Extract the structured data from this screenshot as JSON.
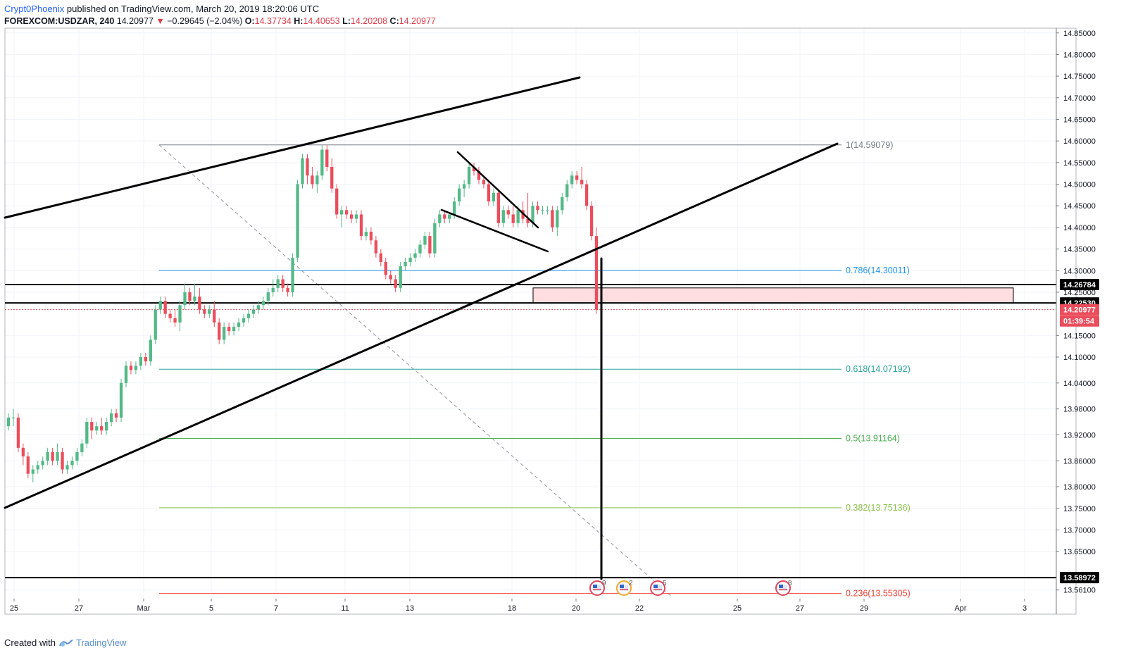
{
  "header": {
    "author": "Crypt0Phoenix",
    "published": "published on TradingView.com, March 20, 2019 18:20:06 UTC",
    "symbol": "FOREXCOM:USDZAR, 240",
    "price": "14.20977",
    "change": "−0.29645 (−2.04%)",
    "o_label": "O:",
    "o_value": "14.37734",
    "h_label": "H:",
    "h_value": "14.40653",
    "l_label": "L:",
    "l_value": "14.20208",
    "c_label": "C:",
    "c_value": "14.20977"
  },
  "footer": {
    "created_with": "Created with",
    "brand": "TradingView"
  },
  "colors": {
    "up": "#53b987",
    "down": "#eb4d5c",
    "trendline": "#000000",
    "fib_0786": "#2196f3",
    "fib_0618": "#26a69a",
    "fib_05": "#4caf50",
    "fib_0382": "#8bc34a",
    "fib_0236": "#f44336",
    "fib_1": "#787b86",
    "zone_fill": "#ffdde0",
    "zone_border": "#000000"
  },
  "chart_data": {
    "type": "candlestick",
    "symbol": "FOREXCOM:USDZAR",
    "interval": "240",
    "y_range": [
      13.541,
      14.861
    ],
    "x_ticks": [
      "25",
      "27",
      "Mar",
      "5",
      "7",
      "11",
      "13",
      "18",
      "20",
      "22",
      "25",
      "27",
      "29",
      "Apr",
      "3"
    ],
    "y_ticks": [
      "14.85000",
      "14.80000",
      "14.75000",
      "14.70000",
      "14.65000",
      "14.60000",
      "14.55000",
      "14.50000",
      "14.45000",
      "14.40000",
      "14.35000",
      "14.30000",
      "14.25000",
      "14.15000",
      "14.10000",
      "14.04000",
      "13.98000",
      "13.92000",
      "13.86000",
      "13.80000",
      "13.75000",
      "13.70000",
      "13.65000",
      "13.56100"
    ],
    "price_labels": [
      {
        "text": "14.26784",
        "value": 14.26784,
        "style": "black"
      },
      {
        "text": "14.22530",
        "value": 14.2253,
        "style": "black"
      },
      {
        "text": "14.20977",
        "value": 14.20977,
        "style": "red"
      },
      {
        "text": "01:39:54",
        "value": 14.1835,
        "style": "red"
      },
      {
        "text": "13.58972",
        "value": 13.58972,
        "style": "black"
      }
    ],
    "fib_levels": [
      {
        "ratio": "1",
        "label": "1(14.59079)",
        "value": 14.59079,
        "color": "#787b86"
      },
      {
        "ratio": "0.786",
        "label": "0.786(14.30011)",
        "value": 14.30011,
        "color": "#2196f3"
      },
      {
        "ratio": "0.618",
        "label": "0.618(14.07192)",
        "value": 14.07192,
        "color": "#26a69a"
      },
      {
        "ratio": "0.5",
        "label": "0.5(13.91164)",
        "value": 13.91164,
        "color": "#4caf50"
      },
      {
        "ratio": "0.382",
        "label": "0.382(13.75136)",
        "value": 13.75136,
        "color": "#8bc34a"
      },
      {
        "ratio": "0.236",
        "label": "0.236(13.55305)",
        "value": 13.55305,
        "color": "#f44336"
      }
    ],
    "horizontal_levels": [
      14.26784,
      14.2253,
      13.58972
    ],
    "current_price": 14.20977,
    "resistance_zone": [
      14.2253,
      14.26
    ],
    "event_markers": [
      {
        "date": "20",
        "count": "9"
      },
      {
        "date": "21",
        "count": "2"
      },
      {
        "date": "22",
        "count": "5"
      },
      {
        "date": "26",
        "count": "8"
      }
    ],
    "candles_ohlc": [
      [
        13.94,
        13.97,
        13.93,
        13.96
      ],
      [
        13.96,
        13.98,
        13.94,
        13.96
      ],
      [
        13.96,
        13.97,
        13.88,
        13.89
      ],
      [
        13.89,
        13.9,
        13.85,
        13.87
      ],
      [
        13.87,
        13.88,
        13.82,
        13.83
      ],
      [
        13.83,
        13.85,
        13.81,
        13.84
      ],
      [
        13.84,
        13.86,
        13.83,
        13.85
      ],
      [
        13.85,
        13.87,
        13.84,
        13.86
      ],
      [
        13.86,
        13.89,
        13.85,
        13.88
      ],
      [
        13.88,
        13.89,
        13.85,
        13.86
      ],
      [
        13.86,
        13.9,
        13.85,
        13.88
      ],
      [
        13.88,
        13.89,
        13.83,
        13.84
      ],
      [
        13.84,
        13.86,
        13.83,
        13.85
      ],
      [
        13.85,
        13.87,
        13.84,
        13.86
      ],
      [
        13.86,
        13.89,
        13.85,
        13.88
      ],
      [
        13.88,
        13.91,
        13.87,
        13.9
      ],
      [
        13.9,
        13.96,
        13.89,
        13.95
      ],
      [
        13.95,
        13.96,
        13.91,
        13.93
      ],
      [
        13.93,
        13.95,
        13.92,
        13.94
      ],
      [
        13.94,
        13.96,
        13.92,
        13.93
      ],
      [
        13.93,
        13.96,
        13.92,
        13.95
      ],
      [
        13.95,
        13.98,
        13.94,
        13.97
      ],
      [
        13.97,
        13.98,
        13.95,
        13.96
      ],
      [
        13.96,
        14.05,
        13.95,
        14.04
      ],
      [
        14.04,
        14.09,
        14.03,
        14.08
      ],
      [
        14.08,
        14.09,
        14.06,
        14.07
      ],
      [
        14.07,
        14.09,
        14.06,
        14.08
      ],
      [
        14.08,
        14.11,
        14.07,
        14.1
      ],
      [
        14.1,
        14.11,
        14.08,
        14.09
      ],
      [
        14.09,
        14.15,
        14.08,
        14.14
      ],
      [
        14.14,
        14.22,
        14.13,
        14.21
      ],
      [
        14.21,
        14.24,
        14.2,
        14.23
      ],
      [
        14.23,
        14.24,
        14.19,
        14.2
      ],
      [
        14.2,
        14.21,
        14.18,
        14.19
      ],
      [
        14.19,
        14.21,
        14.17,
        14.18
      ],
      [
        14.18,
        14.23,
        14.16,
        14.22
      ],
      [
        14.22,
        14.27,
        14.21,
        14.25
      ],
      [
        14.25,
        14.26,
        14.22,
        14.23
      ],
      [
        14.23,
        14.27,
        14.22,
        14.24
      ],
      [
        14.24,
        14.26,
        14.2,
        14.21
      ],
      [
        14.21,
        14.22,
        14.19,
        14.2
      ],
      [
        14.2,
        14.22,
        14.19,
        14.21
      ],
      [
        14.21,
        14.23,
        14.17,
        14.18
      ],
      [
        14.18,
        14.19,
        14.13,
        14.14
      ],
      [
        14.14,
        14.18,
        14.13,
        14.17
      ],
      [
        14.17,
        14.18,
        14.15,
        14.16
      ],
      [
        14.16,
        14.18,
        14.15,
        14.17
      ],
      [
        14.17,
        14.19,
        14.16,
        14.18
      ],
      [
        14.18,
        14.2,
        14.17,
        14.19
      ],
      [
        14.19,
        14.21,
        14.18,
        14.2
      ],
      [
        14.2,
        14.22,
        14.19,
        14.21
      ],
      [
        14.21,
        14.23,
        14.2,
        14.22
      ],
      [
        14.22,
        14.24,
        14.21,
        14.23
      ],
      [
        14.23,
        14.26,
        14.22,
        14.25
      ],
      [
        14.25,
        14.28,
        14.24,
        14.26
      ],
      [
        14.26,
        14.29,
        14.25,
        14.28
      ],
      [
        14.28,
        14.29,
        14.25,
        14.26
      ],
      [
        14.26,
        14.27,
        14.24,
        14.25
      ],
      [
        14.25,
        14.34,
        14.24,
        14.33
      ],
      [
        14.33,
        14.51,
        14.32,
        14.5
      ],
      [
        14.5,
        14.57,
        14.49,
        14.56
      ],
      [
        14.56,
        14.57,
        14.5,
        14.52
      ],
      [
        14.52,
        14.54,
        14.49,
        14.5
      ],
      [
        14.5,
        14.53,
        14.48,
        14.52
      ],
      [
        14.52,
        14.59,
        14.51,
        14.58
      ],
      [
        14.58,
        14.59,
        14.53,
        14.54
      ],
      [
        14.54,
        14.56,
        14.48,
        14.49
      ],
      [
        14.49,
        14.5,
        14.42,
        14.43
      ],
      [
        14.43,
        14.45,
        14.4,
        14.44
      ],
      [
        14.44,
        14.45,
        14.42,
        14.43
      ],
      [
        14.43,
        14.44,
        14.41,
        14.42
      ],
      [
        14.42,
        14.44,
        14.41,
        14.43
      ],
      [
        14.43,
        14.44,
        14.37,
        14.38
      ],
      [
        14.38,
        14.4,
        14.37,
        14.39
      ],
      [
        14.39,
        14.4,
        14.36,
        14.37
      ],
      [
        14.37,
        14.38,
        14.33,
        14.34
      ],
      [
        14.34,
        14.35,
        14.31,
        14.32
      ],
      [
        14.32,
        14.33,
        14.28,
        14.29
      ],
      [
        14.29,
        14.3,
        14.27,
        14.28
      ],
      [
        14.28,
        14.29,
        14.25,
        14.26
      ],
      [
        14.26,
        14.32,
        14.25,
        14.31
      ],
      [
        14.31,
        14.33,
        14.3,
        14.32
      ],
      [
        14.32,
        14.34,
        14.31,
        14.33
      ],
      [
        14.33,
        14.35,
        14.32,
        14.34
      ],
      [
        14.34,
        14.37,
        14.33,
        14.36
      ],
      [
        14.36,
        14.39,
        14.35,
        14.38
      ],
      [
        14.38,
        14.39,
        14.33,
        14.34
      ],
      [
        14.34,
        14.42,
        14.33,
        14.41
      ],
      [
        14.41,
        14.44,
        14.4,
        14.43
      ],
      [
        14.43,
        14.44,
        14.41,
        14.42
      ],
      [
        14.42,
        14.43,
        14.41,
        14.43
      ],
      [
        14.43,
        14.47,
        14.42,
        14.46
      ],
      [
        14.46,
        14.5,
        14.45,
        14.49
      ],
      [
        14.49,
        14.51,
        14.47,
        14.5
      ],
      [
        14.5,
        14.55,
        14.49,
        14.54
      ],
      [
        14.54,
        14.55,
        14.52,
        14.53
      ],
      [
        14.53,
        14.54,
        14.5,
        14.51
      ],
      [
        14.51,
        14.52,
        14.49,
        14.5
      ],
      [
        14.5,
        14.51,
        14.45,
        14.46
      ],
      [
        14.46,
        14.49,
        14.45,
        14.48
      ],
      [
        14.48,
        14.49,
        14.4,
        14.41
      ],
      [
        14.41,
        14.45,
        14.4,
        14.44
      ],
      [
        14.44,
        14.45,
        14.42,
        14.43
      ],
      [
        14.43,
        14.45,
        14.4,
        14.41
      ],
      [
        14.41,
        14.45,
        14.4,
        14.44
      ],
      [
        14.44,
        14.46,
        14.41,
        14.42
      ],
      [
        14.42,
        14.48,
        14.4,
        14.41
      ],
      [
        14.41,
        14.46,
        14.4,
        14.45
      ],
      [
        14.45,
        14.46,
        14.43,
        14.44
      ],
      [
        14.44,
        14.45,
        14.43,
        14.44
      ],
      [
        14.44,
        14.45,
        14.43,
        14.44
      ],
      [
        14.44,
        14.45,
        14.39,
        14.4
      ],
      [
        14.4,
        14.45,
        14.38,
        14.44
      ],
      [
        14.44,
        14.48,
        14.43,
        14.47
      ],
      [
        14.47,
        14.51,
        14.46,
        14.5
      ],
      [
        14.5,
        14.53,
        14.49,
        14.52
      ],
      [
        14.52,
        14.53,
        14.5,
        14.51
      ],
      [
        14.51,
        14.54,
        14.49,
        14.5
      ],
      [
        14.5,
        14.51,
        14.44,
        14.45
      ],
      [
        14.45,
        14.46,
        14.37,
        14.38
      ],
      [
        14.38,
        14.4,
        14.2,
        14.21
      ]
    ]
  }
}
